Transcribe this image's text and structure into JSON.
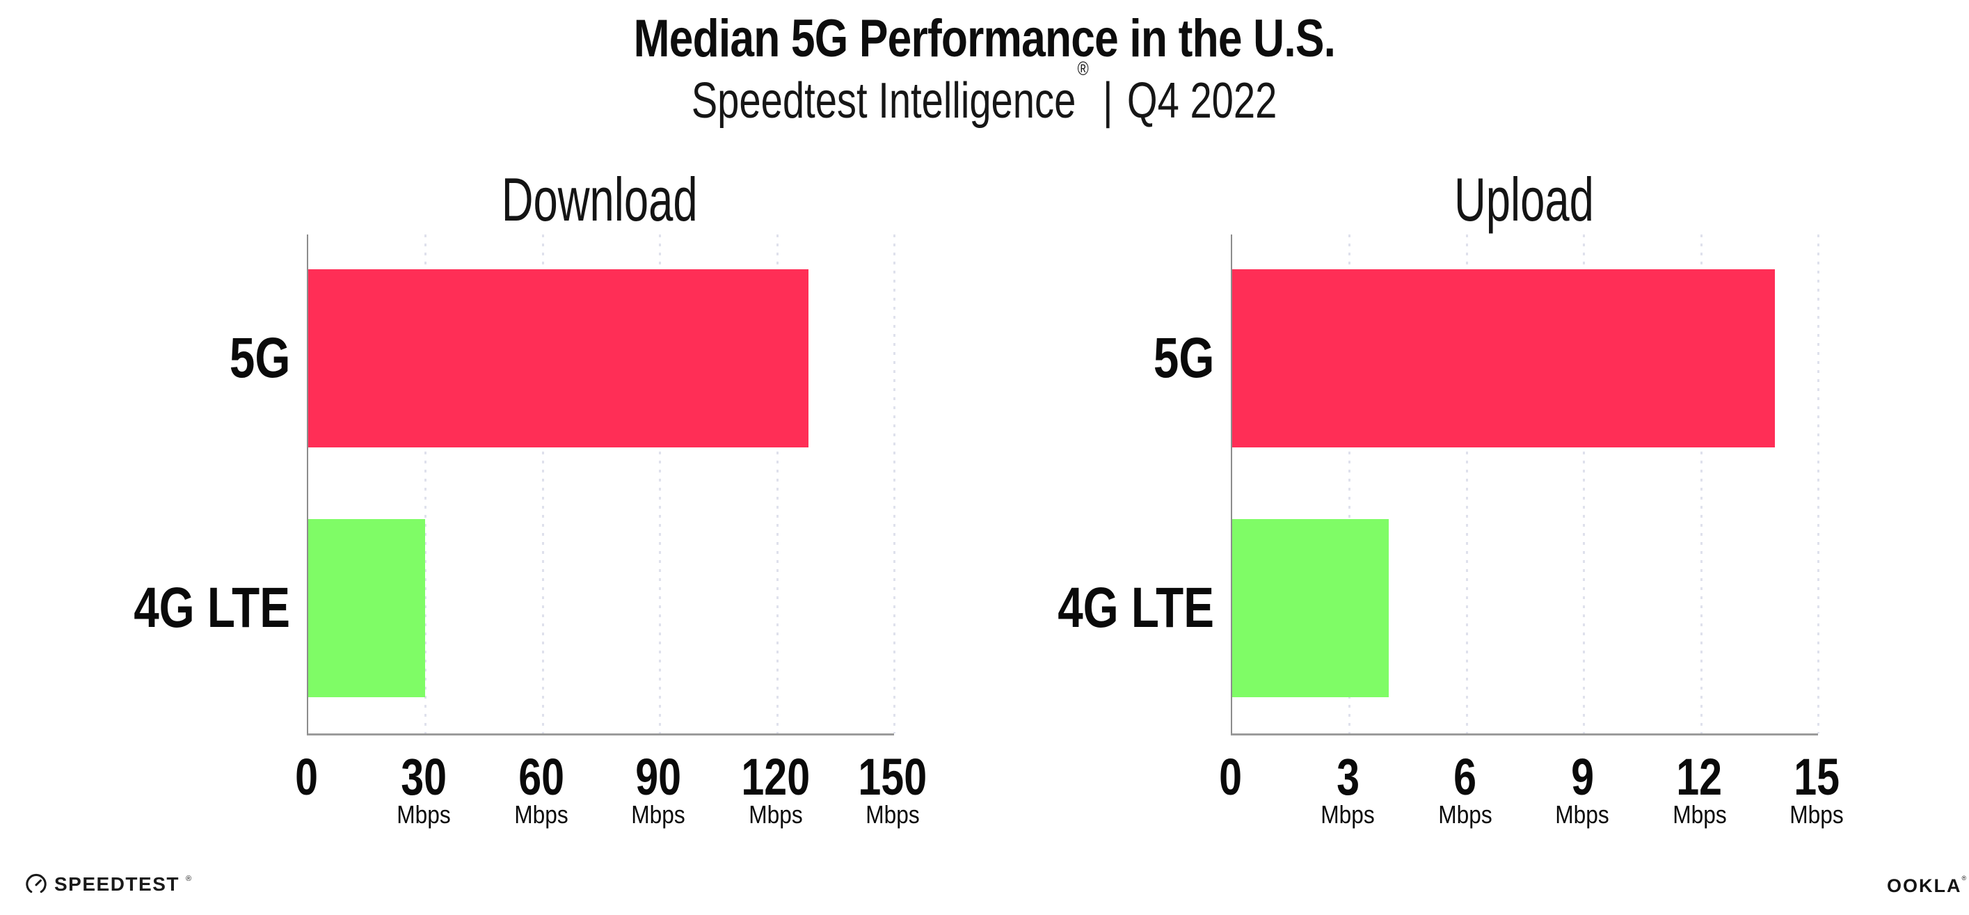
{
  "header": {
    "title": "Median 5G Performance in the U.S.",
    "subtitle_product": "Speedtest Intelligence",
    "subtitle_reg": "®",
    "subtitle_separator": "|",
    "subtitle_period": "Q4 2022"
  },
  "branding": {
    "speedtest_wordmark": "SPEEDTEST",
    "speedtest_reg": "®",
    "ookla_wordmark": "OOKLA",
    "ookla_reg": "®"
  },
  "colors": {
    "bar_5g": "#ff2e56",
    "bar_4g_lte": "#7ffc66",
    "axis": "#9b9b9b",
    "gridline": "#dfe1ec",
    "text": "#0d0d0d"
  },
  "chart_data": [
    {
      "type": "bar",
      "orientation": "horizontal",
      "title": "Download",
      "categories": [
        "5G",
        "4G LTE"
      ],
      "values": [
        128,
        30
      ],
      "unit": "Mbps",
      "xlim": [
        0,
        150
      ],
      "xticks": [
        0,
        30,
        60,
        90,
        120,
        150
      ],
      "grid": "vertical dotted",
      "legend": "none",
      "bar_colors": [
        "#ff2e56",
        "#7ffc66"
      ]
    },
    {
      "type": "bar",
      "orientation": "horizontal",
      "title": "Upload",
      "categories": [
        "5G",
        "4G LTE"
      ],
      "values": [
        13.9,
        4
      ],
      "unit": "Mbps",
      "xlim": [
        0,
        15
      ],
      "xticks": [
        0,
        3,
        6,
        9,
        12,
        15
      ],
      "grid": "vertical dotted",
      "legend": "none",
      "bar_colors": [
        "#ff2e56",
        "#7ffc66"
      ]
    }
  ]
}
